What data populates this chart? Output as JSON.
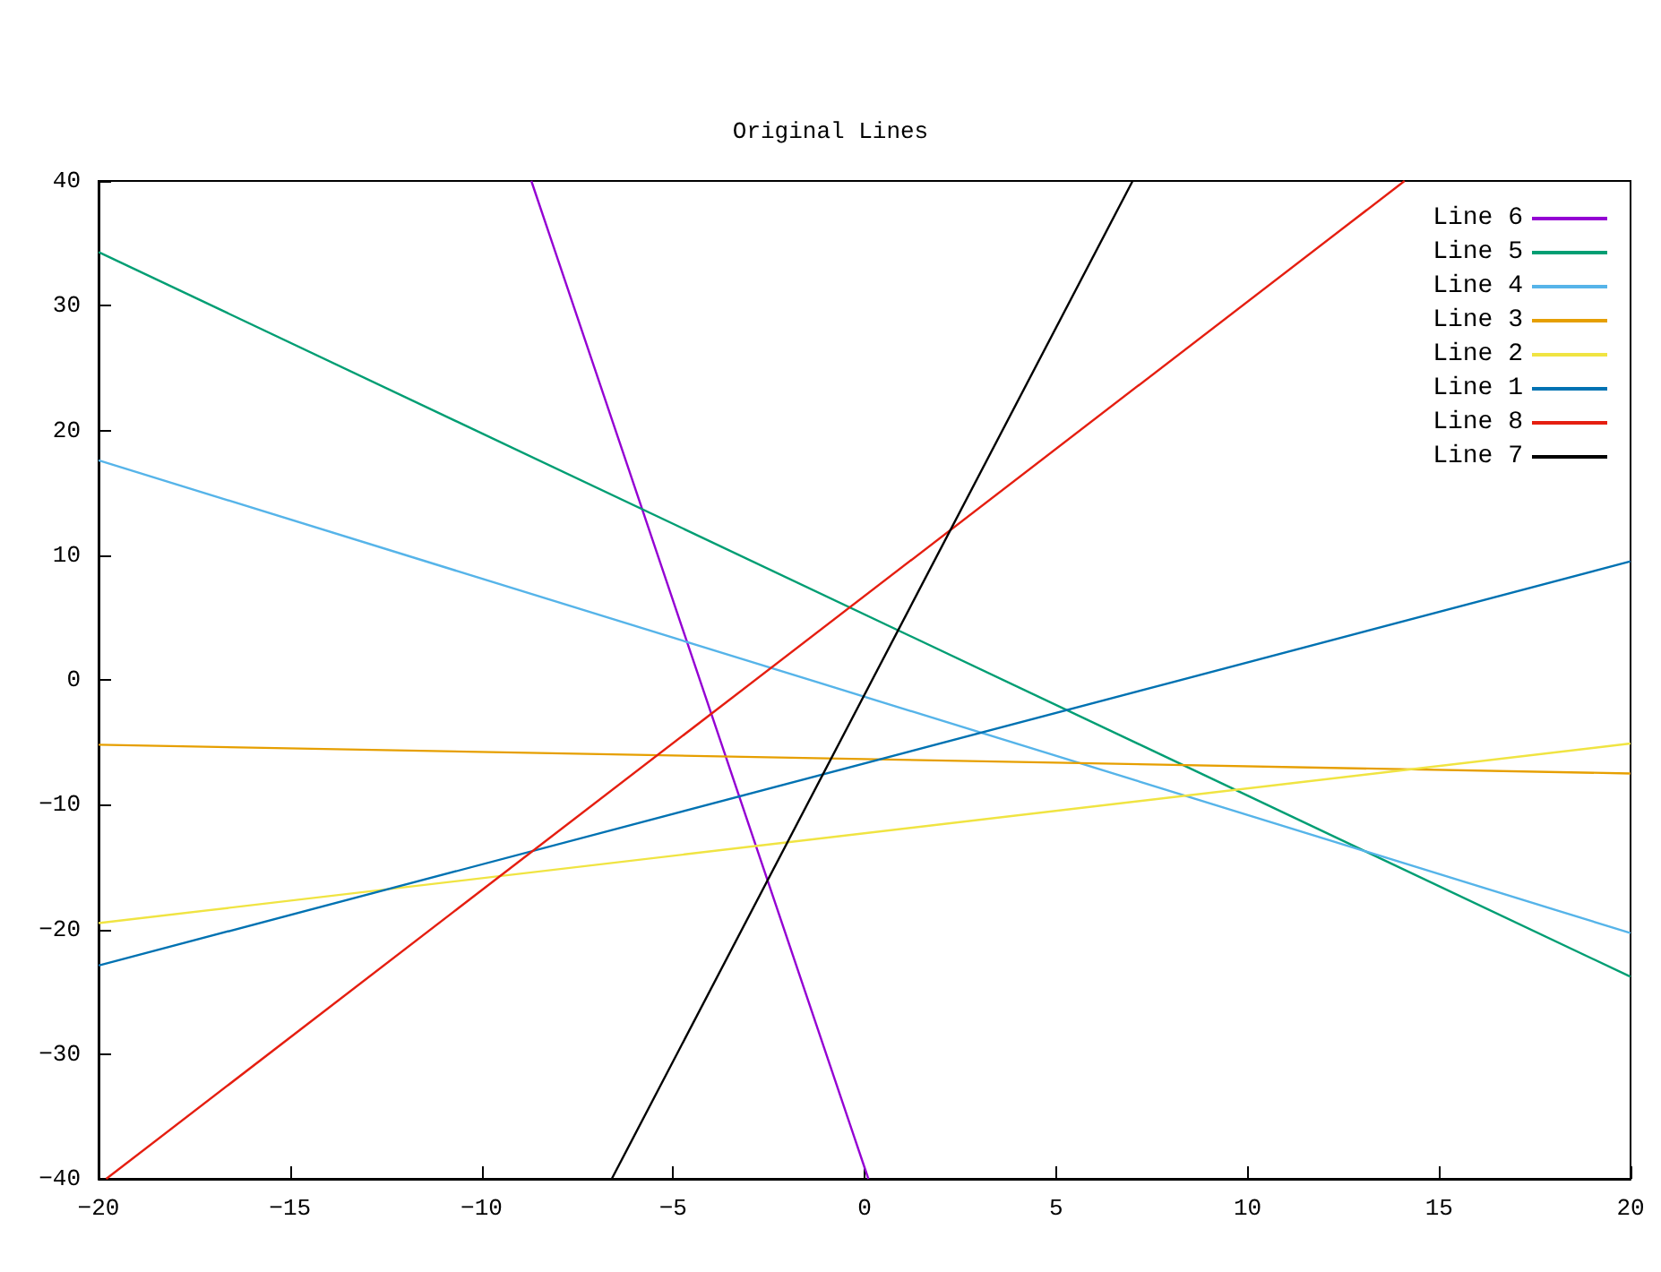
{
  "chart_data": {
    "type": "line",
    "title": "Original Lines",
    "xlim": [
      -20,
      20
    ],
    "xticks": [
      -20,
      -15,
      -10,
      -5,
      0,
      5,
      10,
      15,
      20
    ],
    "ylim": [
      -40,
      40
    ],
    "yticks": [
      -40,
      -30,
      -20,
      -10,
      0,
      10,
      20,
      30,
      40
    ],
    "grid": false,
    "legend": "top right",
    "marker": "none",
    "line_style": "solid",
    "series": [
      {
        "name": "Line 6",
        "color": "#9400d3",
        "x": [
          -8.7,
          0.1
        ],
        "values": [
          40,
          -40
        ]
      },
      {
        "name": "Line 5",
        "color": "#009e73",
        "x": [
          -20,
          20
        ],
        "values": [
          34.3,
          -23.8
        ]
      },
      {
        "name": "Line 4",
        "color": "#56b4e9",
        "x": [
          -20,
          20
        ],
        "values": [
          17.6,
          -20.3
        ]
      },
      {
        "name": "Line 3",
        "color": "#e69f00",
        "x": [
          -20,
          20
        ],
        "values": [
          -5.2,
          -7.5
        ]
      },
      {
        "name": "Line 2",
        "color": "#f0e442",
        "x": [
          -20,
          20
        ],
        "values": [
          -19.5,
          -5.1
        ]
      },
      {
        "name": "Line 1",
        "color": "#0072b2",
        "x": [
          -20,
          20
        ],
        "values": [
          -22.9,
          9.5
        ]
      },
      {
        "name": "Line 8",
        "color": "#e51e10",
        "x": [
          -19.8,
          14.1
        ],
        "values": [
          -40,
          40
        ]
      },
      {
        "name": "Line 7",
        "color": "#000000",
        "x": [
          -6.6,
          7.0
        ],
        "values": [
          -40,
          40
        ]
      }
    ]
  }
}
